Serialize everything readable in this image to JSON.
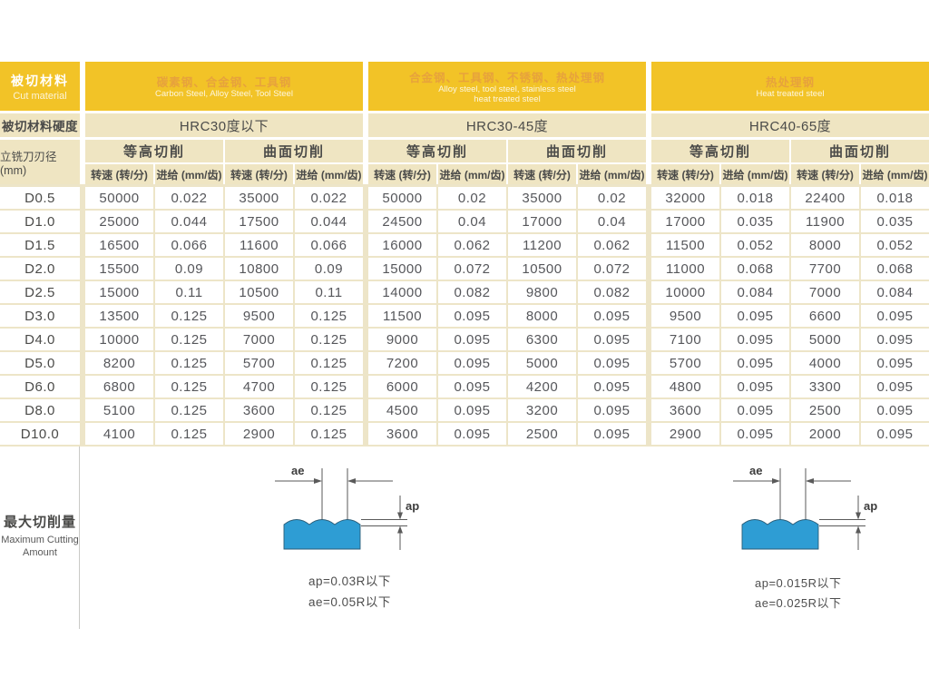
{
  "colors": {
    "yellow": "#F2C327",
    "cream": "#EFE5C2",
    "cream_line": "#EDE5C8",
    "header_cn_text": "#E7A23C",
    "dark_text": "#4B4B49",
    "data_text": "#56575B",
    "diagram_blue": "#2E9DD4"
  },
  "table": {
    "cut_material": {
      "cn": "被切材料",
      "en": "Cut material"
    },
    "hardness_label": "被切材料硬度",
    "diameter_label": "立铣刀刃径(mm)",
    "contour_label": "等高切削",
    "surface_label": "曲面切削",
    "speed_label": "转速 (转/分)",
    "feed_label": "进给 (mm/齿)",
    "groups": [
      {
        "cn": "碳素钢、合金钢、工具钢",
        "en1": "Carbon Steel, Alloy Steel, Tool Steel",
        "en2": "",
        "hardness": "HRC30度以下"
      },
      {
        "cn": "合金钢、工具钢、不锈钢、热处理钢",
        "en1": "Alloy steel, tool steel, stainless steel",
        "en2": "heat treated steel",
        "hardness": "HRC30-45度"
      },
      {
        "cn": "热处理钢",
        "en1": "Heat treated steel",
        "en2": "",
        "hardness": "HRC40-65度"
      }
    ],
    "rows": [
      {
        "d": "D0.5",
        "values": [
          "50000",
          "0.022",
          "35000",
          "0.022",
          "50000",
          "0.02",
          "35000",
          "0.02",
          "32000",
          "0.018",
          "22400",
          "0.018"
        ]
      },
      {
        "d": "D1.0",
        "values": [
          "25000",
          "0.044",
          "17500",
          "0.044",
          "24500",
          "0.04",
          "17000",
          "0.04",
          "17000",
          "0.035",
          "11900",
          "0.035"
        ]
      },
      {
        "d": "D1.5",
        "values": [
          "16500",
          "0.066",
          "11600",
          "0.066",
          "16000",
          "0.062",
          "11200",
          "0.062",
          "11500",
          "0.052",
          "8000",
          "0.052"
        ]
      },
      {
        "d": "D2.0",
        "values": [
          "15500",
          "0.09",
          "10800",
          "0.09",
          "15000",
          "0.072",
          "10500",
          "0.072",
          "11000",
          "0.068",
          "7700",
          "0.068"
        ]
      },
      {
        "d": "D2.5",
        "values": [
          "15000",
          "0.11",
          "10500",
          "0.11",
          "14000",
          "0.082",
          "9800",
          "0.082",
          "10000",
          "0.084",
          "7000",
          "0.084"
        ]
      },
      {
        "d": "D3.0",
        "values": [
          "13500",
          "0.125",
          "9500",
          "0.125",
          "11500",
          "0.095",
          "8000",
          "0.095",
          "9500",
          "0.095",
          "6600",
          "0.095"
        ]
      },
      {
        "d": "D4.0",
        "values": [
          "10000",
          "0.125",
          "7000",
          "0.125",
          "9000",
          "0.095",
          "6300",
          "0.095",
          "7100",
          "0.095",
          "5000",
          "0.095"
        ]
      },
      {
        "d": "D5.0",
        "values": [
          "8200",
          "0.125",
          "5700",
          "0.125",
          "7200",
          "0.095",
          "5000",
          "0.095",
          "5700",
          "0.095",
          "4000",
          "0.095"
        ]
      },
      {
        "d": "D6.0",
        "values": [
          "6800",
          "0.125",
          "4700",
          "0.125",
          "6000",
          "0.095",
          "4200",
          "0.095",
          "4800",
          "0.095",
          "3300",
          "0.095"
        ]
      },
      {
        "d": "D8.0",
        "values": [
          "5100",
          "0.125",
          "3600",
          "0.125",
          "4500",
          "0.095",
          "3200",
          "0.095",
          "3600",
          "0.095",
          "2500",
          "0.095"
        ]
      },
      {
        "d": "D10.0",
        "values": [
          "4100",
          "0.125",
          "2900",
          "0.125",
          "3600",
          "0.095",
          "2500",
          "0.095",
          "2900",
          "0.095",
          "2000",
          "0.095"
        ]
      }
    ]
  },
  "bottom": {
    "label_cn": "最大切削量",
    "label_en1": "Maximum Cutting",
    "label_en2": "Amount",
    "ae_label": "ae",
    "ap_label": "ap",
    "left_notes": {
      "ap": "ap=0.03R以下",
      "ae": "ae=0.05R以下"
    },
    "right_notes": {
      "ap": "ap=0.015R以下",
      "ae": "ae=0.025R以下"
    }
  }
}
